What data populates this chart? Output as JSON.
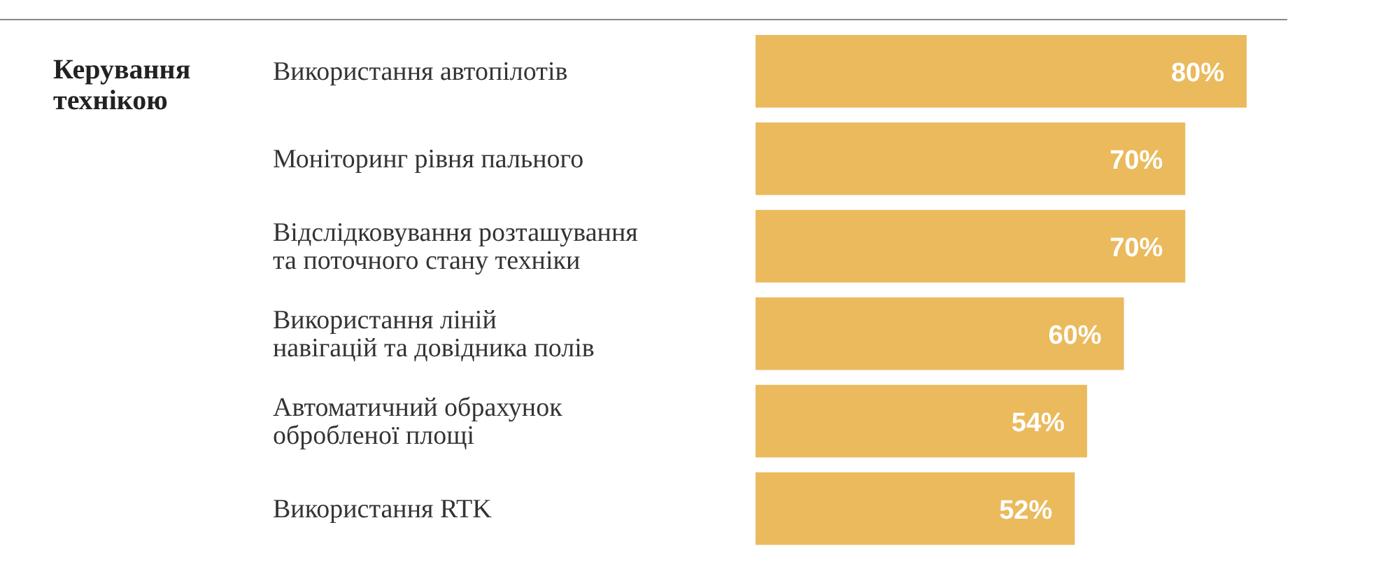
{
  "chart_data": {
    "type": "bar",
    "orientation": "horizontal",
    "title": "Керування\nтехнікою",
    "categories": [
      "Використання автопілотів",
      "Моніторинг рівня пального",
      "Відслідковування розташування\nта поточного стану техніки",
      "Використання ліній\nнавігацій та довідника полів",
      "Автоматичний обрахунок\nобробленої площі",
      "Використання RTK"
    ],
    "values": [
      80,
      70,
      70,
      60,
      54,
      52
    ],
    "value_labels": [
      "80%",
      "70%",
      "70%",
      "60%",
      "54%",
      "52%"
    ],
    "color": "#eaba5d"
  }
}
